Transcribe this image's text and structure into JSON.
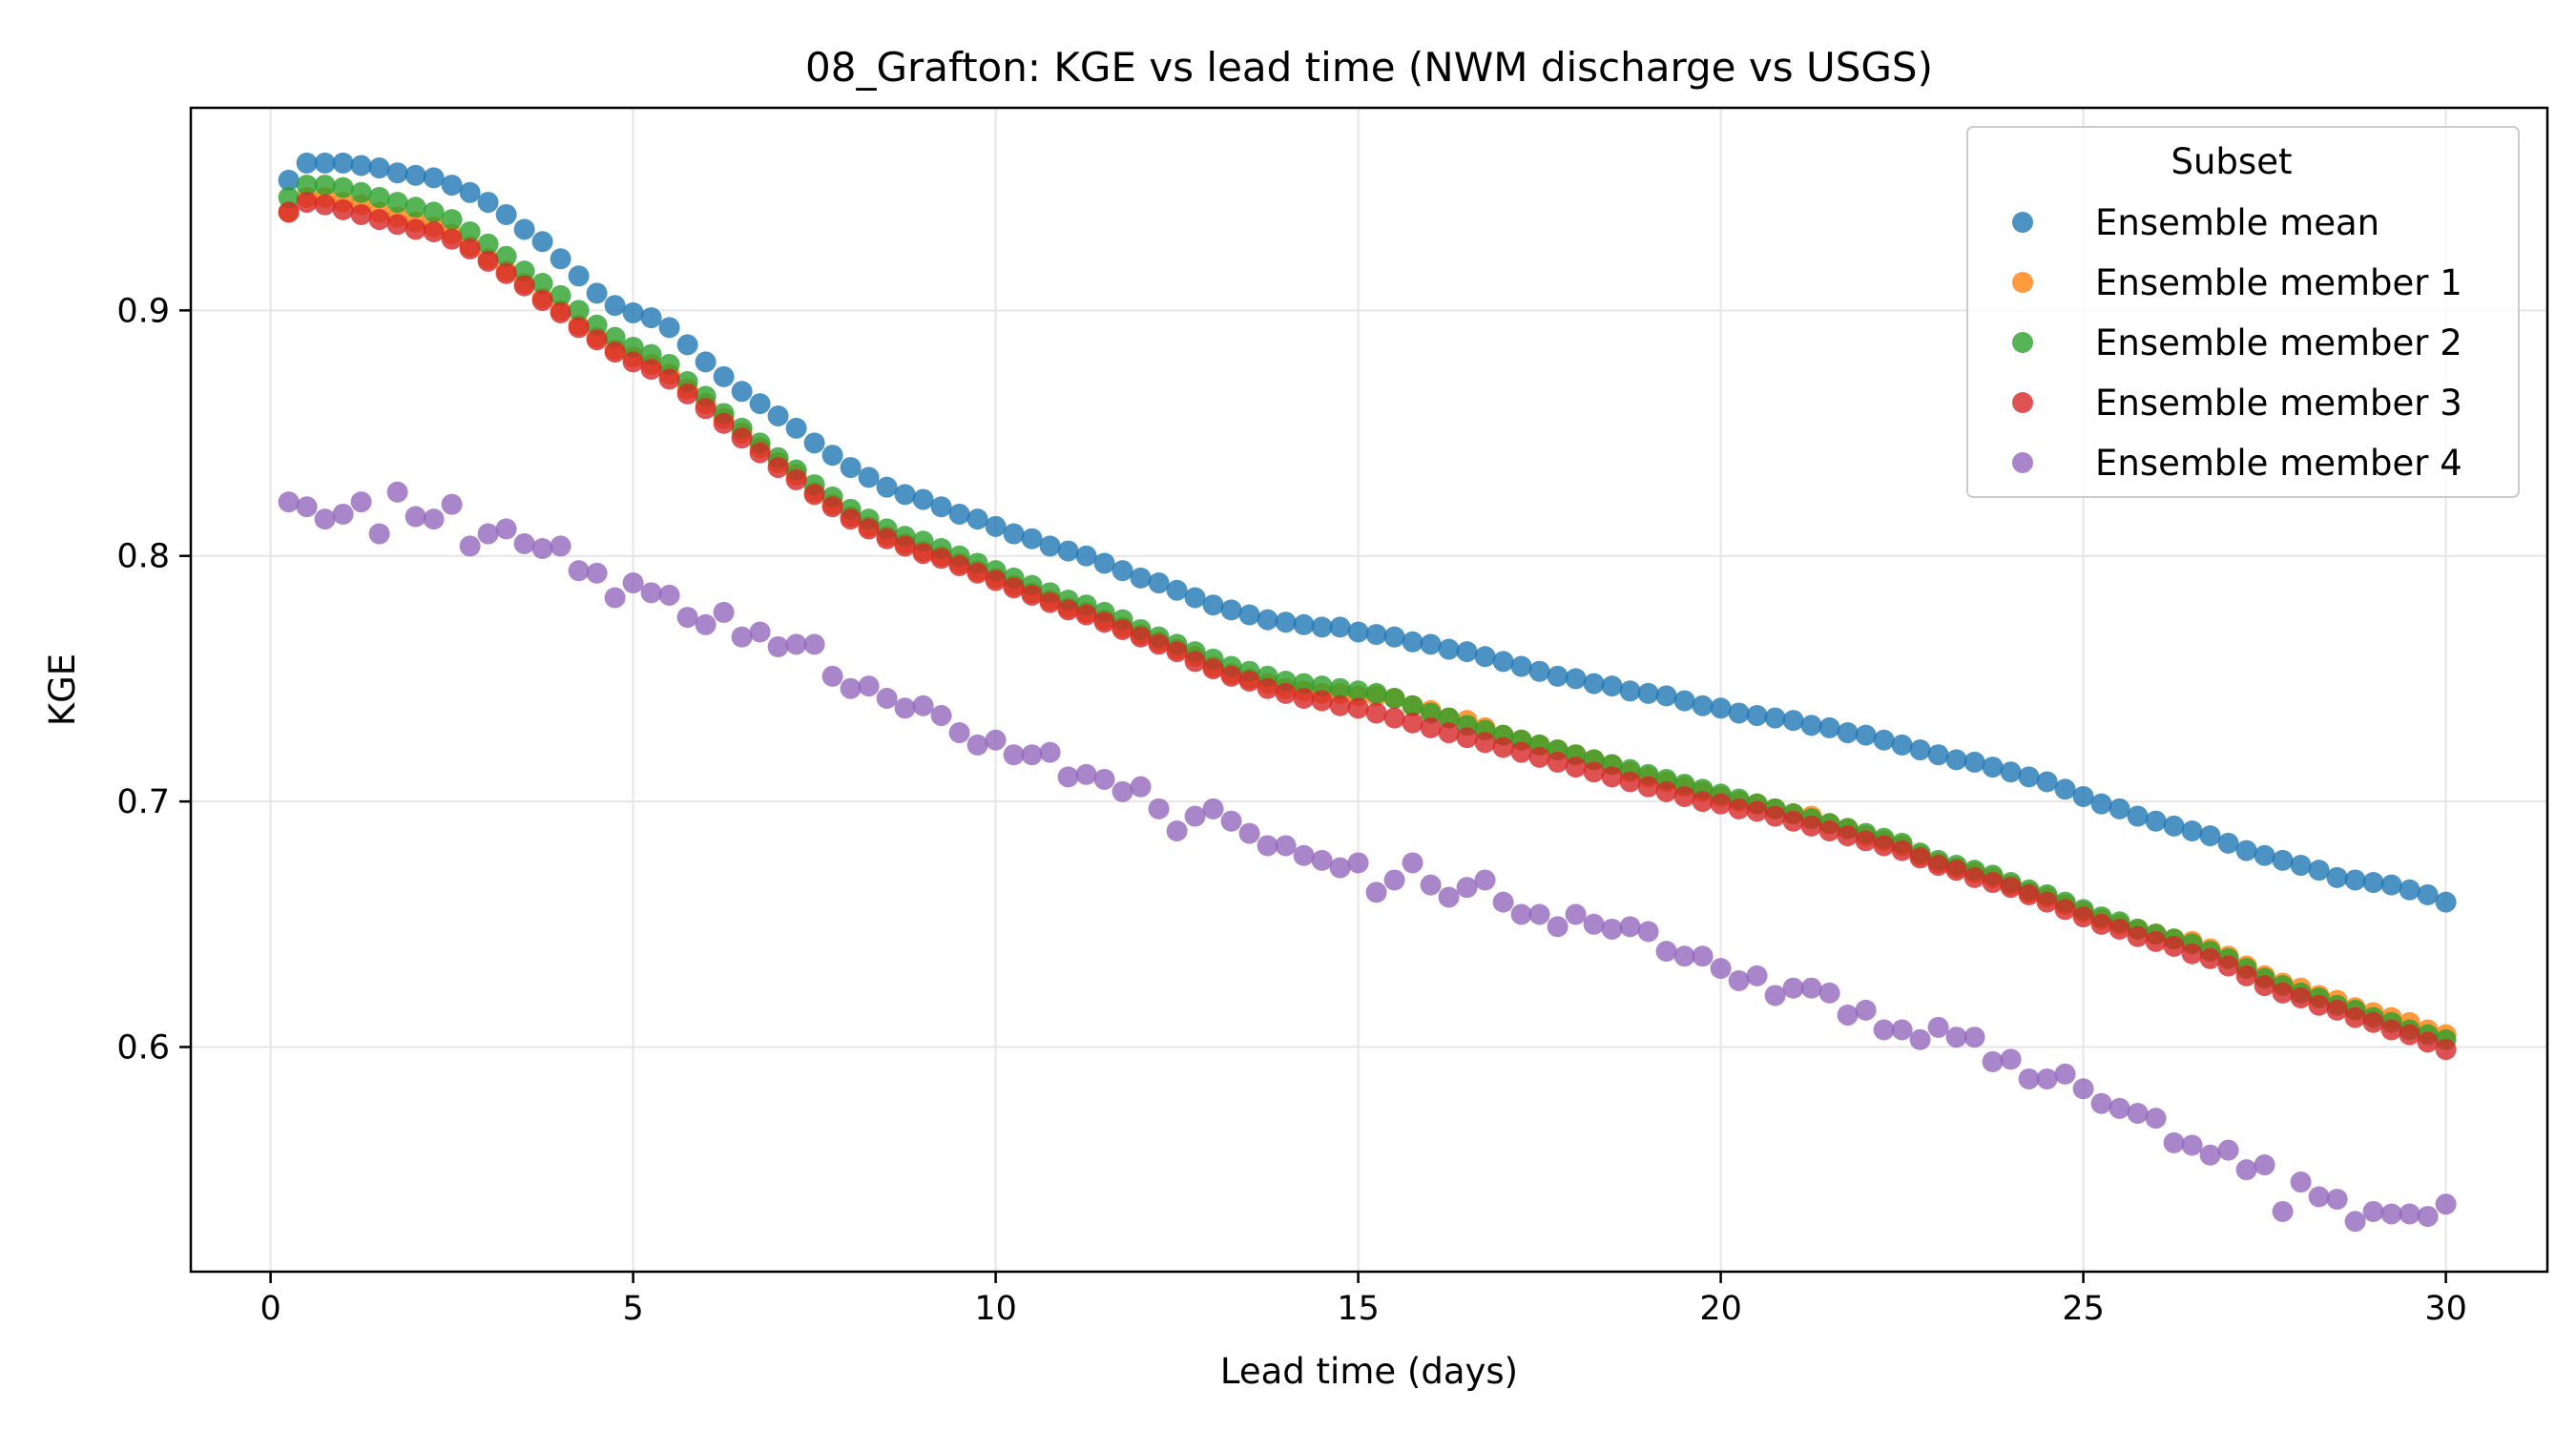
{
  "chart_data": {
    "type": "scatter",
    "title": "08_Grafton: KGE vs lead time (NWM discharge vs USGS)",
    "xlabel": "Lead time (days)",
    "ylabel": "KGE",
    "xlim": [
      -1.1,
      31.4
    ],
    "ylim": [
      0.5085,
      0.9825
    ],
    "xticks": [
      0,
      5,
      10,
      15,
      20,
      25,
      30
    ],
    "xtick_labels": [
      "0",
      "5",
      "10",
      "15",
      "20",
      "25",
      "30"
    ],
    "yticks": [
      0.6,
      0.7,
      0.8,
      0.9
    ],
    "ytick_labels": [
      "0.6",
      "0.7",
      "0.8",
      "0.9"
    ],
    "grid": true,
    "legend": {
      "title": "Subset",
      "placement": "top-right"
    },
    "x": [
      0.25,
      0.5,
      0.75,
      1.0,
      1.25,
      1.5,
      1.75,
      2.0,
      2.25,
      2.5,
      2.75,
      3.0,
      3.25,
      3.5,
      3.75,
      4.0,
      4.25,
      4.5,
      4.75,
      5.0,
      5.25,
      5.5,
      5.75,
      6.0,
      6.25,
      6.5,
      6.75,
      7.0,
      7.25,
      7.5,
      7.75,
      8.0,
      8.25,
      8.5,
      8.75,
      9.0,
      9.25,
      9.5,
      9.75,
      10.0,
      10.25,
      10.5,
      10.75,
      11.0,
      11.25,
      11.5,
      11.75,
      12.0,
      12.25,
      12.5,
      12.75,
      13.0,
      13.25,
      13.5,
      13.75,
      14.0,
      14.25,
      14.5,
      14.75,
      15.0,
      15.25,
      15.5,
      15.75,
      16.0,
      16.25,
      16.5,
      16.75,
      17.0,
      17.25,
      17.5,
      17.75,
      18.0,
      18.25,
      18.5,
      18.75,
      19.0,
      19.25,
      19.5,
      19.75,
      20.0,
      20.25,
      20.5,
      20.75,
      21.0,
      21.25,
      21.5,
      21.75,
      22.0,
      22.25,
      22.5,
      22.75,
      23.0,
      23.25,
      23.5,
      23.75,
      24.0,
      24.25,
      24.5,
      24.75,
      25.0,
      25.25,
      25.5,
      25.75,
      26.0,
      26.25,
      26.5,
      26.75,
      27.0,
      27.25,
      27.5,
      27.75,
      28.0,
      28.25,
      28.5,
      28.75,
      29.0,
      29.25,
      29.5,
      29.75,
      30.0
    ],
    "series": [
      {
        "name": "Ensemble mean",
        "color": "#1f77b4",
        "values": [
          0.953,
          0.96,
          0.96,
          0.96,
          0.959,
          0.958,
          0.956,
          0.955,
          0.954,
          0.951,
          0.948,
          0.944,
          0.939,
          0.933,
          0.928,
          0.921,
          0.914,
          0.907,
          0.902,
          0.899,
          0.897,
          0.893,
          0.886,
          0.879,
          0.873,
          0.867,
          0.862,
          0.857,
          0.852,
          0.846,
          0.841,
          0.836,
          0.832,
          0.828,
          0.825,
          0.823,
          0.82,
          0.817,
          0.815,
          0.812,
          0.809,
          0.807,
          0.804,
          0.802,
          0.8,
          0.797,
          0.794,
          0.791,
          0.789,
          0.786,
          0.783,
          0.78,
          0.778,
          0.776,
          0.774,
          0.773,
          0.772,
          0.771,
          0.771,
          0.769,
          0.768,
          0.767,
          0.765,
          0.764,
          0.762,
          0.761,
          0.759,
          0.757,
          0.755,
          0.753,
          0.751,
          0.75,
          0.748,
          0.747,
          0.745,
          0.744,
          0.743,
          0.741,
          0.739,
          0.738,
          0.736,
          0.735,
          0.734,
          0.733,
          0.731,
          0.73,
          0.728,
          0.727,
          0.725,
          0.723,
          0.721,
          0.719,
          0.717,
          0.716,
          0.714,
          0.712,
          0.71,
          0.708,
          0.705,
          0.702,
          0.699,
          0.697,
          0.694,
          0.692,
          0.69,
          0.688,
          0.686,
          0.683,
          0.68,
          0.678,
          0.676,
          0.674,
          0.672,
          0.669,
          0.668,
          0.667,
          0.666,
          0.664,
          0.662,
          0.659
        ]
      },
      {
        "name": "Ensemble member 1",
        "color": "#ff7f0e",
        "values": [
          0.94,
          0.946,
          0.946,
          0.944,
          0.943,
          0.94,
          0.938,
          0.936,
          0.934,
          0.931,
          0.926,
          0.921,
          0.916,
          0.911,
          0.905,
          0.9,
          0.894,
          0.889,
          0.884,
          0.881,
          0.878,
          0.874,
          0.868,
          0.862,
          0.856,
          0.85,
          0.844,
          0.838,
          0.833,
          0.826,
          0.821,
          0.816,
          0.812,
          0.808,
          0.805,
          0.802,
          0.8,
          0.797,
          0.794,
          0.791,
          0.788,
          0.785,
          0.782,
          0.779,
          0.777,
          0.774,
          0.771,
          0.768,
          0.765,
          0.762,
          0.759,
          0.755,
          0.752,
          0.75,
          0.748,
          0.746,
          0.745,
          0.744,
          0.744,
          0.743,
          0.743,
          0.742,
          0.739,
          0.737,
          0.734,
          0.733,
          0.73,
          0.727,
          0.725,
          0.723,
          0.721,
          0.719,
          0.717,
          0.715,
          0.712,
          0.71,
          0.708,
          0.706,
          0.704,
          0.702,
          0.7,
          0.699,
          0.697,
          0.695,
          0.694,
          0.691,
          0.689,
          0.686,
          0.684,
          0.682,
          0.678,
          0.675,
          0.673,
          0.671,
          0.669,
          0.666,
          0.663,
          0.661,
          0.658,
          0.655,
          0.652,
          0.65,
          0.648,
          0.646,
          0.644,
          0.643,
          0.64,
          0.637,
          0.633,
          0.629,
          0.626,
          0.624,
          0.621,
          0.619,
          0.616,
          0.614,
          0.612,
          0.61,
          0.607,
          0.605
        ]
      },
      {
        "name": "Ensemble member 2",
        "color": "#2ca02c",
        "values": [
          0.946,
          0.951,
          0.951,
          0.95,
          0.948,
          0.946,
          0.944,
          0.942,
          0.94,
          0.937,
          0.932,
          0.927,
          0.922,
          0.916,
          0.911,
          0.906,
          0.9,
          0.894,
          0.889,
          0.885,
          0.882,
          0.878,
          0.871,
          0.865,
          0.858,
          0.852,
          0.846,
          0.84,
          0.835,
          0.829,
          0.824,
          0.819,
          0.815,
          0.811,
          0.808,
          0.806,
          0.803,
          0.8,
          0.797,
          0.794,
          0.791,
          0.788,
          0.785,
          0.782,
          0.78,
          0.777,
          0.774,
          0.77,
          0.767,
          0.764,
          0.761,
          0.758,
          0.755,
          0.753,
          0.751,
          0.749,
          0.748,
          0.747,
          0.746,
          0.745,
          0.744,
          0.742,
          0.739,
          0.736,
          0.734,
          0.731,
          0.729,
          0.727,
          0.725,
          0.723,
          0.721,
          0.719,
          0.717,
          0.715,
          0.713,
          0.711,
          0.709,
          0.707,
          0.705,
          0.703,
          0.701,
          0.699,
          0.697,
          0.695,
          0.693,
          0.691,
          0.689,
          0.687,
          0.685,
          0.683,
          0.679,
          0.676,
          0.674,
          0.672,
          0.67,
          0.667,
          0.664,
          0.662,
          0.659,
          0.656,
          0.653,
          0.651,
          0.648,
          0.646,
          0.644,
          0.642,
          0.639,
          0.636,
          0.632,
          0.628,
          0.625,
          0.622,
          0.62,
          0.617,
          0.615,
          0.612,
          0.61,
          0.607,
          0.605,
          0.603
        ]
      },
      {
        "name": "Ensemble member 3",
        "color": "#d62728",
        "values": [
          0.94,
          0.944,
          0.943,
          0.941,
          0.939,
          0.937,
          0.935,
          0.933,
          0.932,
          0.929,
          0.925,
          0.92,
          0.915,
          0.91,
          0.904,
          0.899,
          0.893,
          0.888,
          0.883,
          0.879,
          0.876,
          0.872,
          0.866,
          0.86,
          0.854,
          0.848,
          0.842,
          0.836,
          0.831,
          0.825,
          0.82,
          0.815,
          0.811,
          0.807,
          0.804,
          0.801,
          0.799,
          0.796,
          0.793,
          0.79,
          0.787,
          0.784,
          0.781,
          0.778,
          0.776,
          0.773,
          0.77,
          0.767,
          0.764,
          0.761,
          0.757,
          0.754,
          0.751,
          0.749,
          0.746,
          0.744,
          0.742,
          0.741,
          0.739,
          0.738,
          0.736,
          0.734,
          0.732,
          0.73,
          0.728,
          0.726,
          0.724,
          0.722,
          0.72,
          0.718,
          0.716,
          0.714,
          0.712,
          0.71,
          0.708,
          0.706,
          0.704,
          0.702,
          0.7,
          0.699,
          0.697,
          0.696,
          0.694,
          0.692,
          0.69,
          0.688,
          0.686,
          0.684,
          0.682,
          0.68,
          0.677,
          0.674,
          0.672,
          0.669,
          0.667,
          0.665,
          0.662,
          0.659,
          0.656,
          0.653,
          0.65,
          0.648,
          0.645,
          0.643,
          0.641,
          0.638,
          0.636,
          0.633,
          0.629,
          0.625,
          0.622,
          0.62,
          0.617,
          0.615,
          0.612,
          0.61,
          0.607,
          0.605,
          0.602,
          0.599
        ]
      },
      {
        "name": "Ensemble member 4",
        "color": "#9467bd",
        "values": [
          0.822,
          0.82,
          0.815,
          0.817,
          0.822,
          0.809,
          0.826,
          0.816,
          0.815,
          0.821,
          0.804,
          0.809,
          0.811,
          0.805,
          0.803,
          0.804,
          0.794,
          0.793,
          0.783,
          0.789,
          0.785,
          0.784,
          0.775,
          0.772,
          0.777,
          0.767,
          0.769,
          0.763,
          0.764,
          0.764,
          0.751,
          0.746,
          0.747,
          0.742,
          0.738,
          0.739,
          0.735,
          0.728,
          0.723,
          0.725,
          0.719,
          0.719,
          0.72,
          0.71,
          0.711,
          0.709,
          0.704,
          0.706,
          0.697,
          0.688,
          0.694,
          0.697,
          0.692,
          0.687,
          0.682,
          0.682,
          0.678,
          0.676,
          0.673,
          0.675,
          0.663,
          0.668,
          0.675,
          0.666,
          0.661,
          0.665,
          0.668,
          0.659,
          0.654,
          0.654,
          0.649,
          0.654,
          0.65,
          0.648,
          0.649,
          0.647,
          0.639,
          0.637,
          0.637,
          0.632,
          0.627,
          0.629,
          0.621,
          0.624,
          0.624,
          0.622,
          0.613,
          0.615,
          0.607,
          0.607,
          0.603,
          0.608,
          0.604,
          0.604,
          0.594,
          0.595,
          0.587,
          0.587,
          0.589,
          0.583,
          0.577,
          0.575,
          0.573,
          0.571,
          0.561,
          0.56,
          0.556,
          0.558,
          0.55,
          0.552,
          0.533,
          0.545,
          0.539,
          0.538,
          0.529,
          0.533,
          0.532,
          0.532,
          0.531,
          0.536
        ]
      }
    ]
  }
}
